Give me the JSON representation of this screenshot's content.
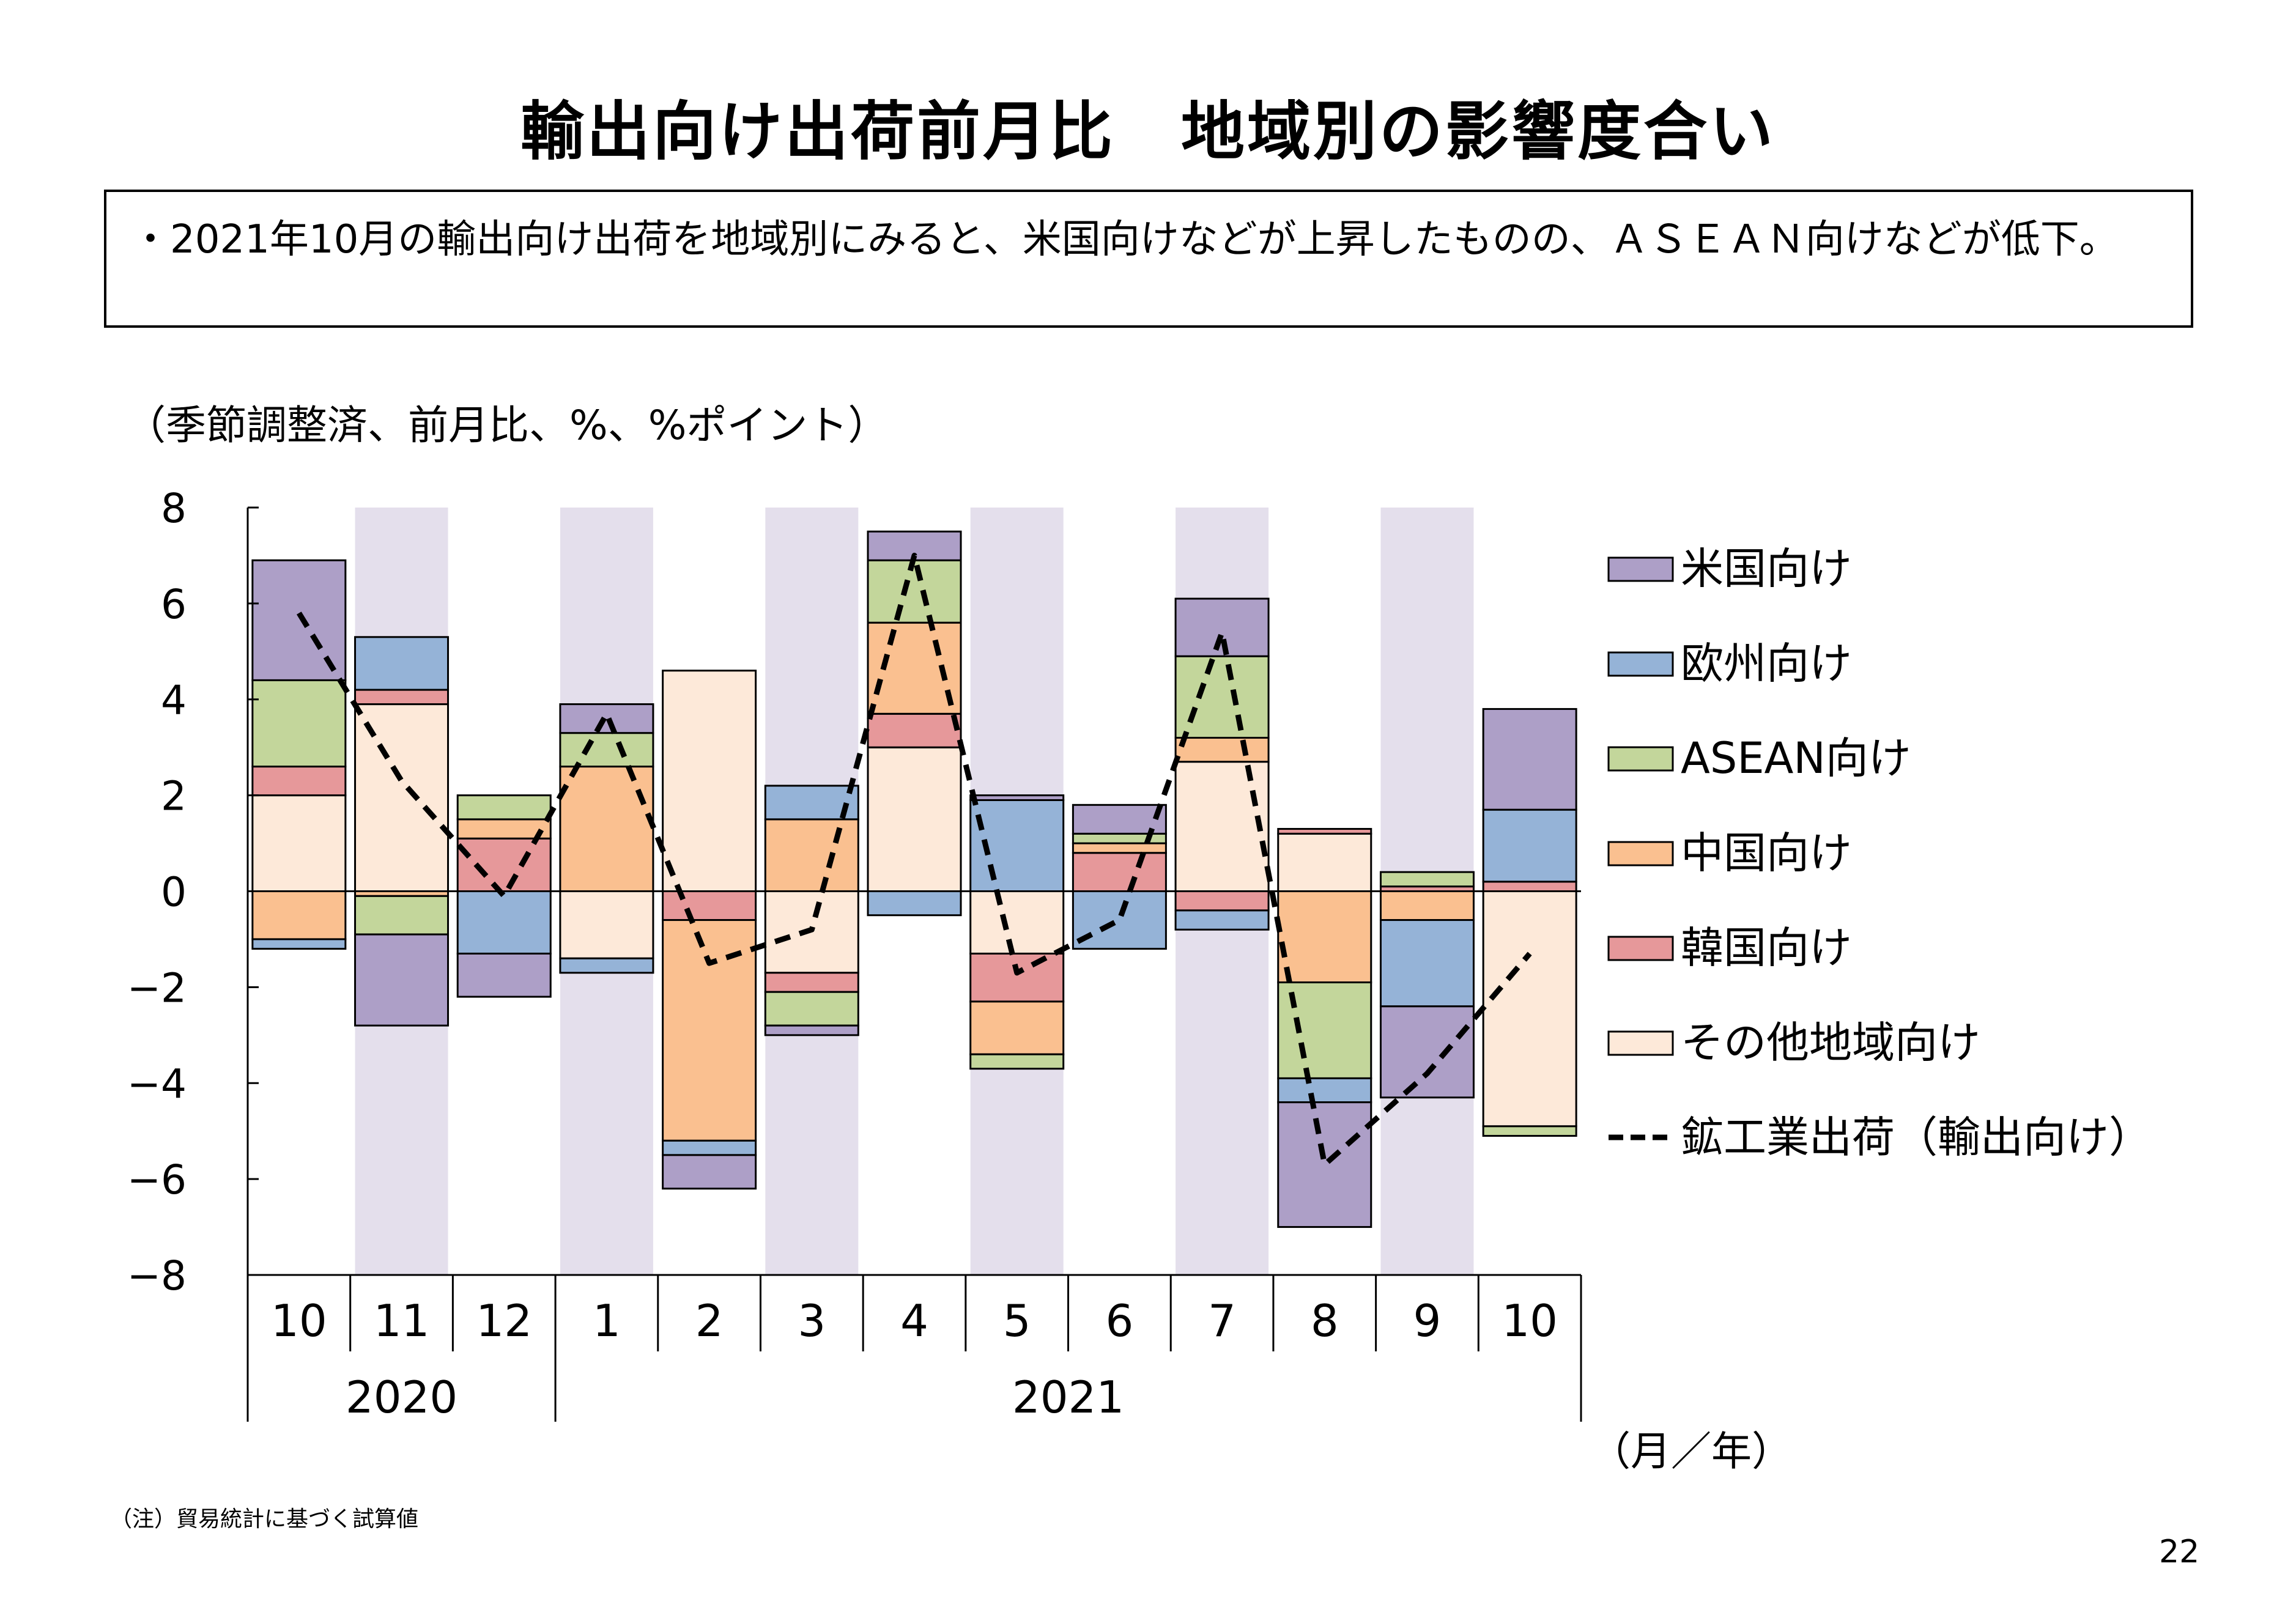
{
  "title": "輸出向け出荷前月比　地域別の影響度合い",
  "summary": "・2021年10月の輸出向け出荷を地域別にみると、米国向けなどが上昇したものの、ＡＳＥＡＮ向けなどが低下。",
  "unit_label": "（季節調整済、前月比、%、%ポイント）",
  "x_unit_label": "（月／年）",
  "note": "（注）貿易統計に基づく試算値",
  "page_number": "22",
  "colors": {
    "us": "#ad9fc7",
    "eu": "#95b3d7",
    "asean": "#c3d69b",
    "china": "#fac090",
    "korea": "#e6989a",
    "other": "#fde9d9",
    "shade": "#e4dfec",
    "line": "#000000"
  },
  "chart_data": {
    "type": "bar",
    "stacked": true,
    "categories": [
      "10",
      "11",
      "12",
      "1",
      "2",
      "3",
      "4",
      "5",
      "6",
      "7",
      "8",
      "9",
      "10"
    ],
    "year_groups": [
      {
        "label": "2020",
        "from": 0,
        "to": 2
      },
      {
        "label": "2021",
        "from": 3,
        "to": 12
      }
    ],
    "shaded_categories": [
      1,
      3,
      5,
      7,
      9,
      11
    ],
    "ylim": [
      -8,
      8
    ],
    "yticks": [
      8,
      6,
      4,
      2,
      0,
      -2,
      -4,
      -6,
      -8
    ],
    "ytick_labels": [
      "8",
      "6",
      "4",
      "2",
      "0",
      "−2",
      "−4",
      "−6",
      "−8"
    ],
    "series": [
      {
        "name": "米国向け",
        "key": "us",
        "values": [
          2.5,
          -1.9,
          -0.9,
          0.6,
          -0.7,
          -0.2,
          0.6,
          0.1,
          0.6,
          1.2,
          -2.6,
          -1.9,
          2.1
        ]
      },
      {
        "name": "欧州向け",
        "key": "eu",
        "values": [
          -0.2,
          1.1,
          -1.3,
          -0.3,
          -0.3,
          0.7,
          -0.5,
          1.9,
          -1.2,
          -0.4,
          -0.5,
          -1.8,
          1.5
        ]
      },
      {
        "name": "ASEAN向け",
        "key": "asean",
        "values": [
          1.8,
          -0.8,
          0.5,
          0.7,
          0.0,
          -0.7,
          1.3,
          -0.3,
          0.2,
          1.7,
          -2.0,
          0.3,
          -0.2
        ]
      },
      {
        "name": "中国向け",
        "key": "china",
        "values": [
          -1.0,
          -0.1,
          0.4,
          2.6,
          -4.6,
          1.5,
          1.9,
          -1.1,
          0.2,
          0.5,
          -1.9,
          -0.6,
          0.0
        ]
      },
      {
        "name": "韓国向け",
        "key": "korea",
        "values": [
          0.6,
          0.3,
          1.1,
          0.0,
          -0.6,
          -0.4,
          0.7,
          -1.0,
          0.8,
          -0.4,
          0.1,
          0.1,
          0.2
        ]
      },
      {
        "name": "その他地域向け",
        "key": "other",
        "values": [
          2.0,
          3.9,
          0.0,
          -1.4,
          4.6,
          -1.7,
          3.0,
          -1.3,
          0.0,
          2.7,
          1.2,
          0.0,
          -4.9
        ]
      }
    ],
    "line_series": {
      "name": "鉱工業出荷（輸出向け）",
      "key": "line",
      "values": [
        5.8,
        2.3,
        -0.1,
        3.7,
        -1.5,
        -0.8,
        7.0,
        -1.7,
        -0.6,
        5.4,
        -5.7,
        -3.8,
        -1.3
      ]
    }
  }
}
